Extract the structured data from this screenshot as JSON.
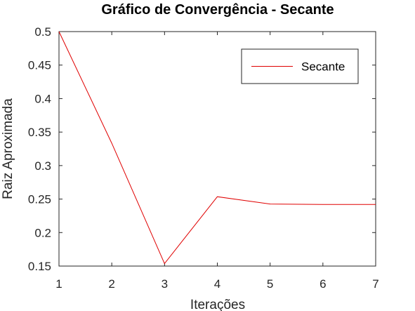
{
  "chart_data": {
    "type": "line",
    "title": "Gráfico de Convergência - Secante",
    "xlabel": "Iterações",
    "ylabel": "Raiz Aproximada",
    "xlim": [
      1,
      7
    ],
    "ylim": [
      0.15,
      0.5
    ],
    "xticks": [
      1,
      2,
      3,
      4,
      5,
      6,
      7
    ],
    "yticks": [
      0.15,
      0.2,
      0.25,
      0.3,
      0.35,
      0.4,
      0.45,
      0.5
    ],
    "xtick_labels": [
      "1",
      "2",
      "3",
      "4",
      "5",
      "6",
      "7"
    ],
    "ytick_labels": [
      "0.15",
      "0.2",
      "0.25",
      "0.3",
      "0.35",
      "0.4",
      "0.45",
      "0.5"
    ],
    "grid": false,
    "legend_position": "top-right",
    "series": [
      {
        "name": "Secante",
        "color": "#e00000",
        "x": [
          1,
          2,
          3,
          4,
          5,
          6,
          7
        ],
        "y": [
          0.5,
          0.3333,
          0.1538,
          0.2535,
          0.2426,
          0.2419,
          0.2419
        ]
      }
    ]
  }
}
